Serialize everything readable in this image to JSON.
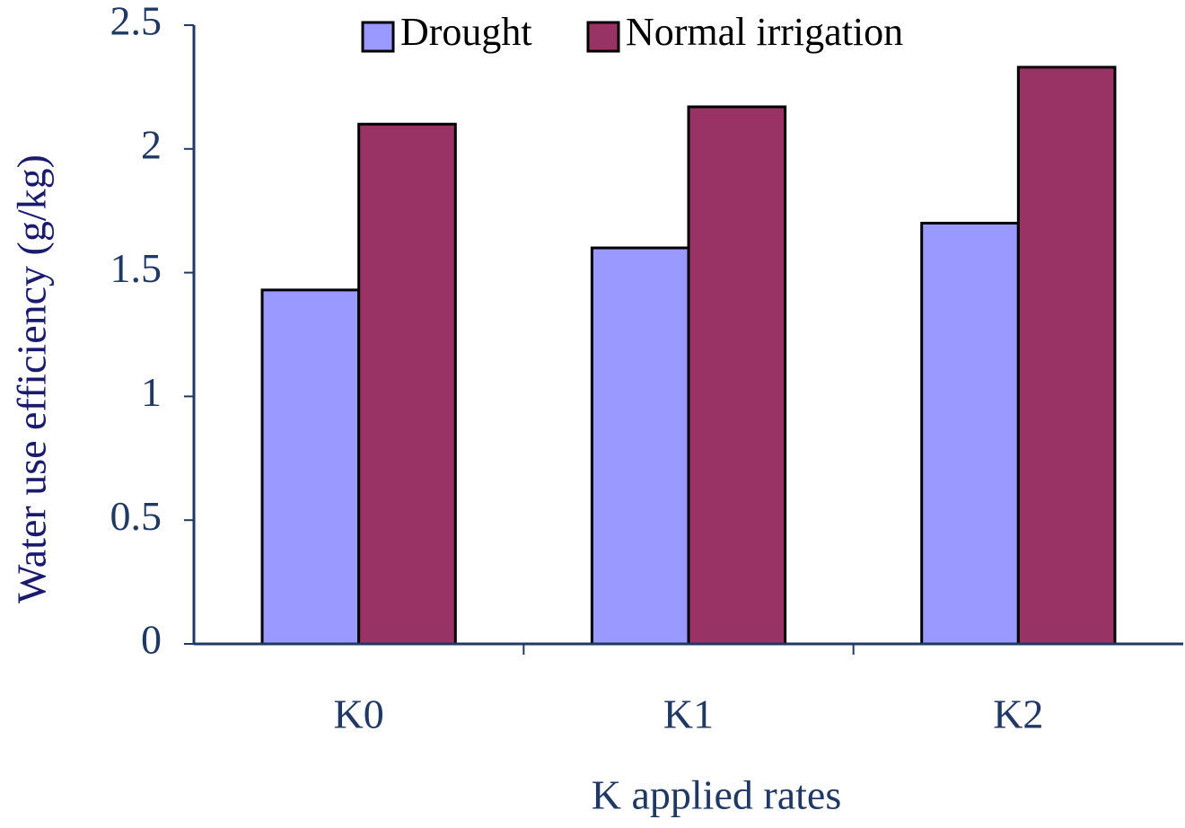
{
  "chart_data": {
    "type": "bar",
    "x_label": "K applied rates",
    "y_label": "Water use efficiency (g/kg)",
    "categories": [
      "K0",
      "K1",
      "K2"
    ],
    "series": [
      {
        "name": "Drought",
        "color": "#9999ff",
        "values": [
          1.43,
          1.6,
          1.7
        ]
      },
      {
        "name": "Normal irrigation",
        "color": "#993366",
        "values": [
          2.1,
          2.17,
          2.33
        ]
      }
    ],
    "ylim": [
      0,
      2.5
    ],
    "yticks": [
      0,
      0.5,
      1,
      1.5,
      2,
      2.5
    ],
    "grid": false,
    "legend": "top"
  }
}
